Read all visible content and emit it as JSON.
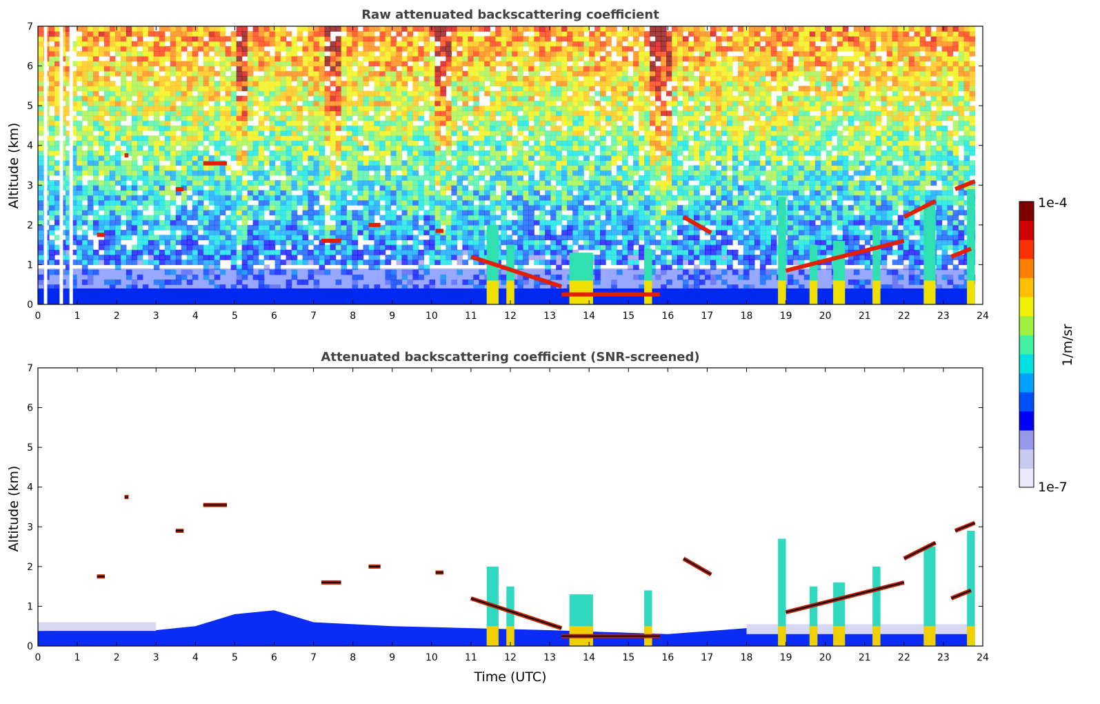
{
  "chart_data": [
    {
      "type": "heatmap",
      "title": "Raw attenuated backscattering coefficient",
      "xlabel": "",
      "ylabel": "Altitude (km)",
      "xlim": [
        0,
        24
      ],
      "ylim": [
        0,
        7
      ],
      "xticks": [
        "0",
        "1",
        "2",
        "3",
        "4",
        "5",
        "6",
        "7",
        "8",
        "9",
        "10",
        "11",
        "12",
        "13",
        "14",
        "15",
        "16",
        "17",
        "18",
        "19",
        "20",
        "21",
        "22",
        "23",
        "24"
      ],
      "yticks": [
        "0",
        "1",
        "2",
        "3",
        "4",
        "5",
        "6",
        "7"
      ],
      "boundary_layer_top_km": 0.4,
      "cloud_layers": [
        {
          "t0": 1.5,
          "t1": 1.7,
          "z": 1.75
        },
        {
          "t0": 2.2,
          "t1": 2.3,
          "z": 3.75
        },
        {
          "t0": 3.5,
          "t1": 3.7,
          "z": 2.9
        },
        {
          "t0": 4.2,
          "t1": 4.8,
          "z": 3.55
        },
        {
          "t0": 7.2,
          "t1": 7.7,
          "z": 1.6
        },
        {
          "t0": 8.4,
          "t1": 8.7,
          "z": 2.0
        },
        {
          "t0": 10.1,
          "t1": 10.3,
          "z": 1.85
        },
        {
          "t0": 11.0,
          "t1": 13.3,
          "z0": 1.2,
          "z1": 0.45
        },
        {
          "t0": 13.3,
          "t1": 15.8,
          "z": 0.25
        },
        {
          "t0": 16.4,
          "t1": 17.1,
          "z0": 2.2,
          "z1": 1.8
        },
        {
          "t0": 19.0,
          "t1": 22.0,
          "z0": 0.85,
          "z1": 1.6
        },
        {
          "t0": 22.0,
          "t1": 22.8,
          "z0": 2.2,
          "z1": 2.6
        },
        {
          "t0": 23.2,
          "t1": 23.7,
          "z0": 1.2,
          "z1": 1.4
        },
        {
          "t0": 23.3,
          "t1": 23.8,
          "z0": 2.9,
          "z1": 3.1
        }
      ],
      "precipitation_columns": [
        {
          "t0": 11.4,
          "t1": 11.7,
          "ztop": 2.0
        },
        {
          "t0": 11.9,
          "t1": 12.1,
          "ztop": 1.5
        },
        {
          "t0": 13.5,
          "t1": 14.1,
          "ztop": 1.3
        },
        {
          "t0": 15.4,
          "t1": 15.6,
          "ztop": 1.4
        },
        {
          "t0": 18.8,
          "t1": 19.0,
          "ztop": 2.7
        },
        {
          "t0": 19.6,
          "t1": 19.8,
          "ztop": 1.5
        },
        {
          "t0": 20.2,
          "t1": 20.5,
          "ztop": 1.6
        },
        {
          "t0": 21.2,
          "t1": 21.4,
          "ztop": 2.0
        },
        {
          "t0": 22.5,
          "t1": 22.8,
          "ztop": 2.5
        },
        {
          "t0": 23.6,
          "t1": 23.8,
          "ztop": 2.9
        }
      ]
    },
    {
      "type": "heatmap",
      "title": "Attenuated backscattering coefficient (SNR-screened)",
      "xlabel": "Time (UTC)",
      "ylabel": "Altitude (km)",
      "xlim": [
        0,
        24
      ],
      "ylim": [
        0,
        7
      ],
      "xticks": [
        "0",
        "1",
        "2",
        "3",
        "4",
        "5",
        "6",
        "7",
        "8",
        "9",
        "10",
        "11",
        "12",
        "13",
        "14",
        "15",
        "16",
        "17",
        "18",
        "19",
        "20",
        "21",
        "22",
        "23",
        "24"
      ],
      "yticks": [
        "0",
        "1",
        "2",
        "3",
        "4",
        "5",
        "6",
        "7"
      ],
      "boundary_layer_top_km": [
        [
          0,
          0.38
        ],
        [
          3,
          0.4
        ],
        [
          4,
          0.5
        ],
        [
          5,
          0.8
        ],
        [
          6,
          0.9
        ],
        [
          7,
          0.6
        ],
        [
          9,
          0.5
        ],
        [
          11,
          0.45
        ],
        [
          13,
          0.4
        ],
        [
          16,
          0.3
        ],
        [
          18,
          0.45
        ],
        [
          24,
          0.4
        ]
      ]
    }
  ],
  "colorbar": {
    "label": "1/m/sr",
    "max_label": "1e-4",
    "min_label": "1e-7",
    "colors": [
      "#e8e8f8",
      "#c8c8f0",
      "#9898e8",
      "#0000ff",
      "#0050ff",
      "#00a0ff",
      "#00e0e0",
      "#40f0a0",
      "#a0f040",
      "#f0f000",
      "#ffc000",
      "#ff8000",
      "#ff3000",
      "#d00000",
      "#800000"
    ]
  }
}
